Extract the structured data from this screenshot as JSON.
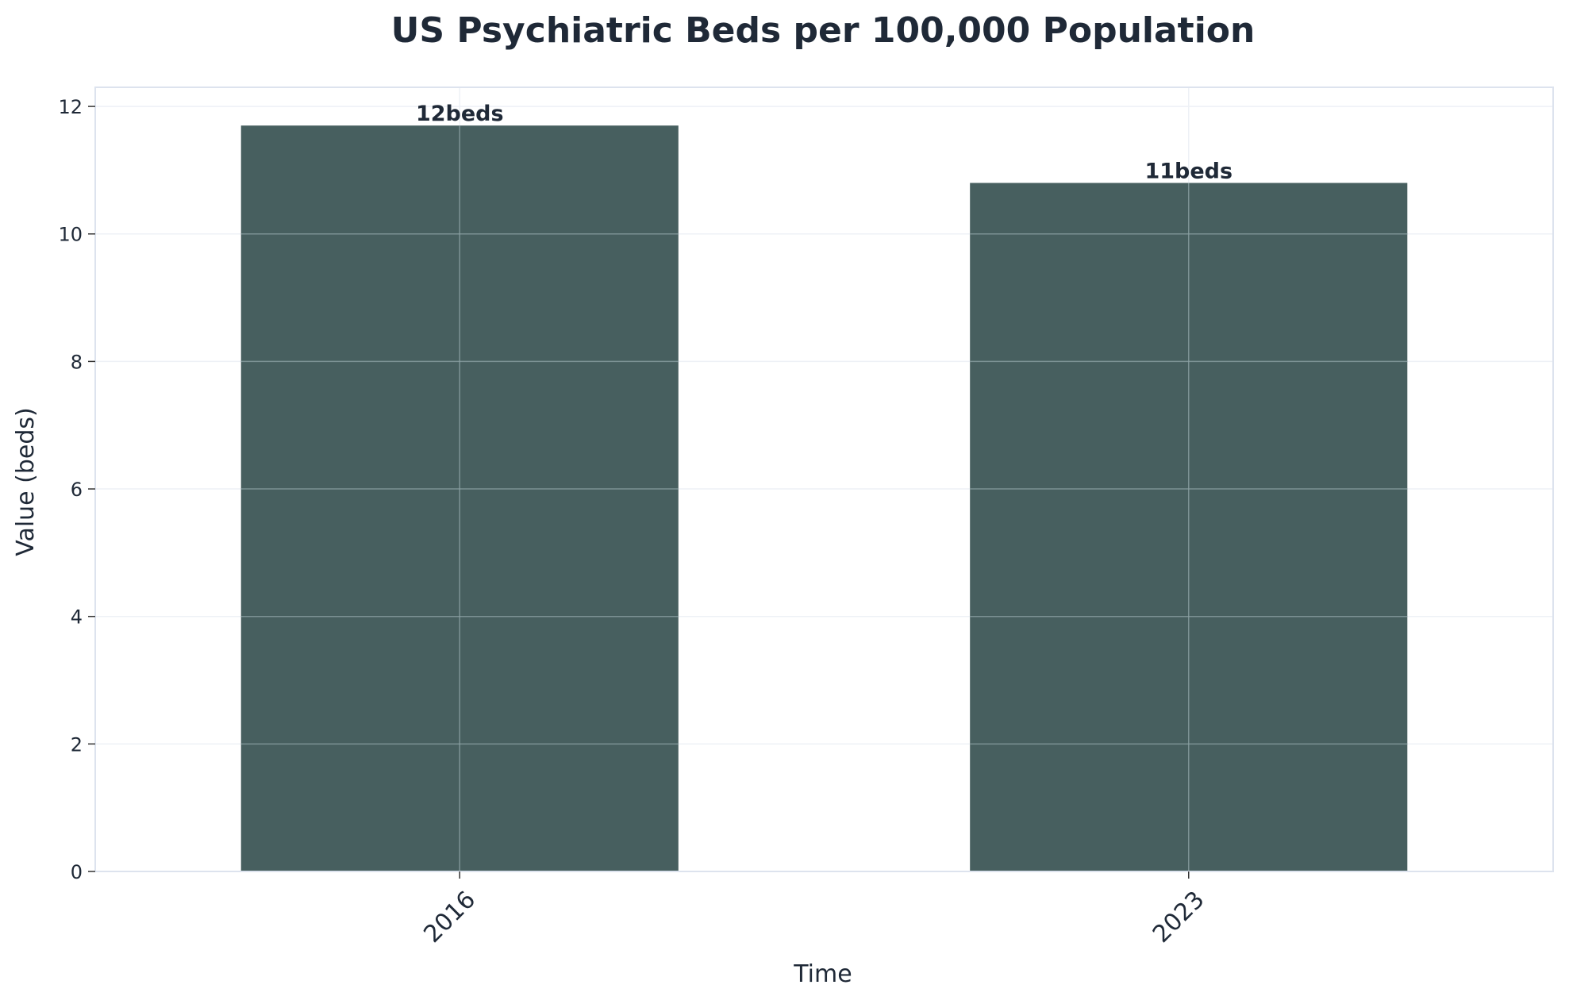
{
  "chart_data": {
    "type": "bar",
    "title": "US Psychiatric Beds per 100,000 Population",
    "xlabel": "Time",
    "ylabel": "Value (beds)",
    "categories": [
      "2016",
      "2023"
    ],
    "values": [
      11.7,
      10.8
    ],
    "data_labels": [
      "12beds",
      "11beds"
    ],
    "ylim": [
      0,
      12.3
    ],
    "yticks": [
      0,
      2,
      4,
      6,
      8,
      10,
      12
    ],
    "grid": true,
    "x_tick_rotation_deg": 45,
    "colors": {
      "bar": "#475f5f",
      "text": "#1f2937",
      "frame": "#dde3ee",
      "grid_outer": "#eef1f6",
      "grid_inner": "#8ea3a6"
    }
  }
}
